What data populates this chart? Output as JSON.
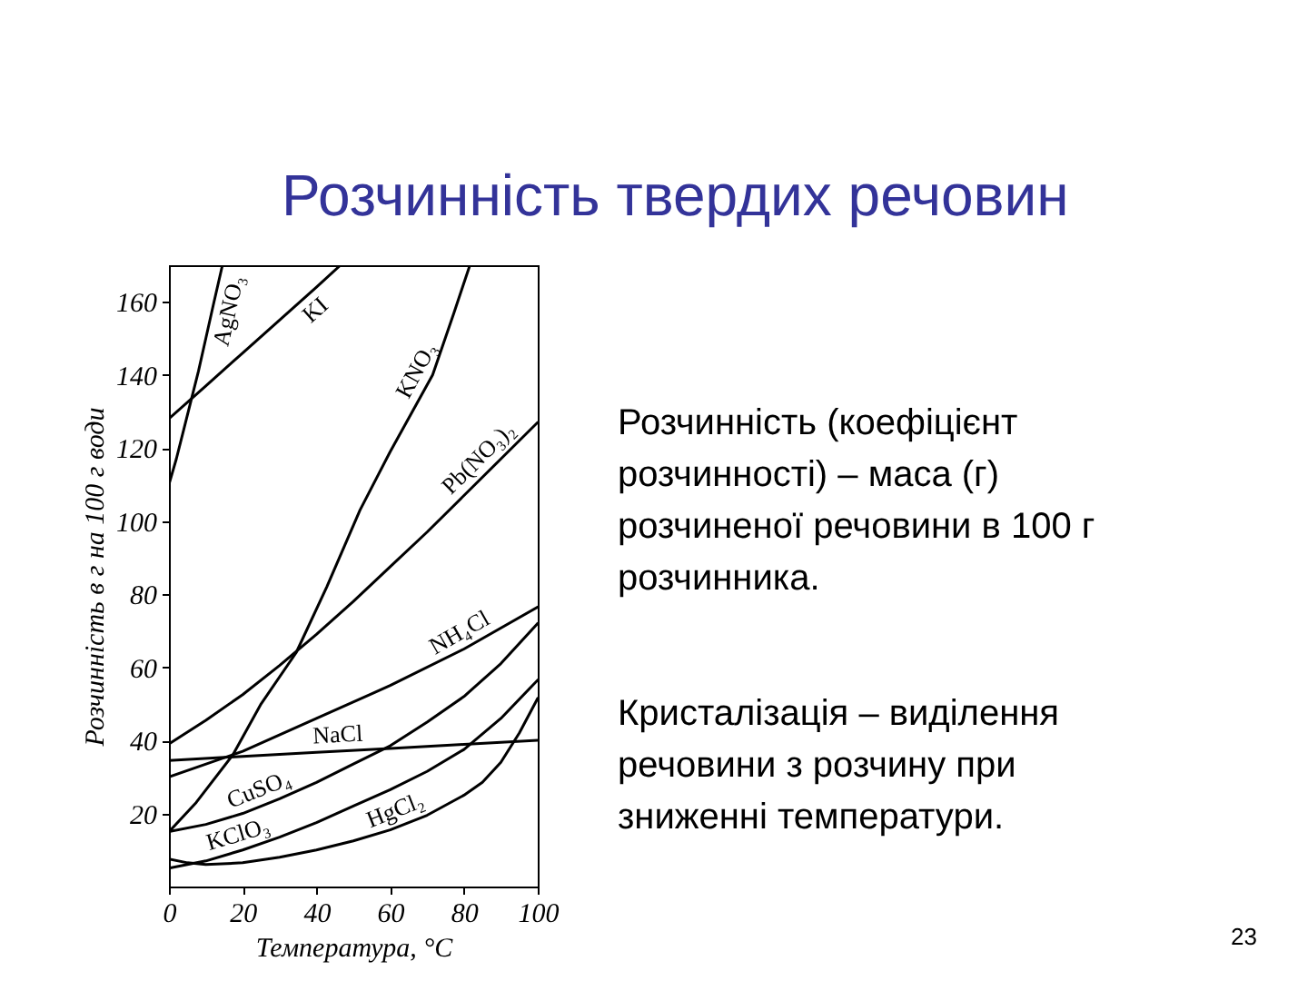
{
  "chart_data": {
    "type": "line",
    "title": "Розчинність твердих речовин",
    "xlabel": "Температура, °C",
    "ylabel": "Розчинність в г на 100 г води",
    "xlim": [
      0,
      100
    ],
    "ylim": [
      0,
      170
    ],
    "xticks": [
      0,
      20,
      40,
      60,
      80,
      100
    ],
    "yticks": [
      20,
      40,
      60,
      80,
      100,
      120,
      140,
      160
    ],
    "grid": false,
    "legend": false,
    "line_style": "solid",
    "series": [
      {
        "name": "AgNO₃",
        "color": "#000000",
        "x": [
          0,
          2,
          4,
          6,
          8,
          10,
          12,
          14.5
        ],
        "values": [
          110,
          117,
          125,
          133,
          141,
          150,
          159,
          170
        ]
      },
      {
        "name": "KI",
        "color": "#000000",
        "x": [
          0,
          10,
          20,
          30,
          40,
          46.5
        ],
        "values": [
          128,
          137,
          146,
          155,
          164,
          170
        ]
      },
      {
        "name": "KNO₃",
        "color": "#000000",
        "x": [
          0,
          7.4,
          17.3,
          25,
          34.5,
          42.8,
          51.8,
          60,
          71.5,
          77.3,
          81.6
        ],
        "values": [
          15,
          23,
          36,
          50,
          64,
          82,
          103,
          119,
          140,
          157,
          170
        ]
      },
      {
        "name": "Pb(NO₃)₂",
        "color": "#000000",
        "x": [
          0,
          10,
          20,
          30,
          40,
          50,
          60,
          70,
          80,
          90,
          100
        ],
        "values": [
          39,
          45.5,
          52.5,
          60.5,
          69,
          78,
          87.5,
          97,
          107,
          117,
          127
        ]
      },
      {
        "name": "NH₄Cl",
        "color": "#000000",
        "x": [
          0,
          20,
          40,
          60,
          80,
          100
        ],
        "values": [
          30,
          37,
          46,
          55,
          65,
          76.5
        ]
      },
      {
        "name": "NaCl",
        "color": "#000000",
        "x": [
          0,
          20,
          40,
          60,
          80,
          100
        ],
        "values": [
          34.5,
          35.6,
          36.7,
          37.8,
          38.9,
          40
        ]
      },
      {
        "name": "CuSO₄",
        "color": "#000000",
        "x": [
          0,
          10,
          20,
          30,
          40,
          50,
          60,
          70,
          80,
          90,
          100
        ],
        "values": [
          15,
          17,
          20,
          24,
          28.5,
          33.5,
          38.5,
          45,
          52,
          61,
          72
        ]
      },
      {
        "name": "KClO₃",
        "color": "#000000",
        "x": [
          0,
          10,
          20,
          30,
          40,
          50,
          60,
          70,
          80,
          90,
          100
        ],
        "values": [
          5,
          7,
          10,
          13.5,
          17.5,
          22,
          26.5,
          31.5,
          37.5,
          46,
          56.5
        ]
      },
      {
        "name": "HgCl₂",
        "color": "#000000",
        "x": [
          0,
          5,
          10,
          20,
          30,
          40,
          50,
          60,
          70,
          80,
          85,
          90,
          95,
          100
        ],
        "values": [
          7.5,
          6.5,
          6,
          6.5,
          8,
          10,
          12.5,
          15.5,
          19.5,
          25,
          28.5,
          34,
          42,
          51.5
        ]
      }
    ],
    "annotations": [
      "Розчинність (коефіцієнт розчинності) – маса (г) розчиненої речовини в 100 г розчинника.",
      "Кристалізація – виділення речовини з розчину при зниженні температури.",
      "23"
    ]
  }
}
